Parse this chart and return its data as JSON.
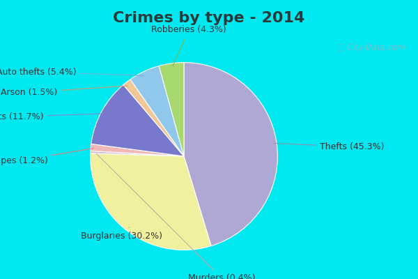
{
  "title": "Crimes by type - 2014",
  "labels": [
    "Thefts",
    "Burglaries",
    "Murders",
    "Rapes",
    "Assaults",
    "Arson",
    "Auto thefts",
    "Robberies"
  ],
  "pct_labels": [
    "45.3%",
    "30.2%",
    "0.4%",
    "1.2%",
    "11.7%",
    "1.5%",
    "5.4%",
    "4.3%"
  ],
  "values": [
    45.3,
    30.2,
    0.4,
    1.2,
    11.7,
    1.5,
    5.4,
    4.3
  ],
  "colors": [
    "#b0a8d4",
    "#f0f09e",
    "#d4bcc8",
    "#f0b8b8",
    "#7878cc",
    "#f0c898",
    "#90c8ec",
    "#a8d870"
  ],
  "title_fontsize": 16,
  "label_fontsize": 9,
  "bg_cyan": "#00e8f0",
  "bg_inner": "#d8f0e0",
  "title_color": "#2a3a3a",
  "label_color": "#333333",
  "startangle": 90
}
